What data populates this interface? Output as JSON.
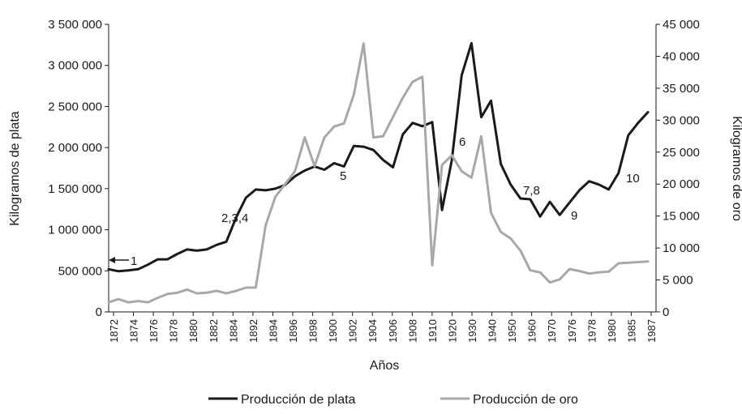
{
  "chart_data": {
    "type": "line",
    "xlabel": "Años",
    "ylabel_left": "Kilogramos de plata",
    "ylabel_right": "Kilogramos de oro",
    "ylim_left": [
      0,
      3500000
    ],
    "ylim_right": [
      0,
      45000
    ],
    "y_ticks_left": [
      "0",
      "500 000",
      "1 000 000",
      "1 500 000",
      "2 000 000",
      "2 500 000",
      "3 000 000",
      "3 500 000"
    ],
    "y_ticks_right": [
      "0",
      "5 000",
      "10 000",
      "15 000",
      "20 000",
      "25 000",
      "30 000",
      "35 000",
      "40 000",
      "45 000"
    ],
    "x_ticks": [
      "1872",
      "1874",
      "1876",
      "1878",
      "1880",
      "1882",
      "1884",
      "1892",
      "1894",
      "1896",
      "1898",
      "1900",
      "1902",
      "1904",
      "1906",
      "1908",
      "1910",
      "1920",
      "1930",
      "1940",
      "1950",
      "1960",
      "1970",
      "1976",
      "1978",
      "1980",
      "1985",
      "1987"
    ],
    "grid": false,
    "legend_position": "bottom",
    "series": [
      {
        "name": "Producción de plata",
        "axis": "left",
        "color": "#1a1a1a",
        "values": [
          520000,
          495000,
          505000,
          520000,
          575000,
          640000,
          640000,
          705000,
          760000,
          745000,
          760000,
          815000,
          855000,
          1150000,
          1390000,
          1490000,
          1480000,
          1500000,
          1545000,
          1650000,
          1720000,
          1770000,
          1730000,
          1810000,
          1770000,
          2020000,
          2010000,
          1970000,
          1850000,
          1760000,
          2160000,
          2300000,
          2260000,
          2310000,
          1240000,
          1850000,
          2880000,
          3270000,
          2370000,
          2570000,
          1800000,
          1550000,
          1380000,
          1370000,
          1160000,
          1340000,
          1180000,
          1330000,
          1480000,
          1590000,
          1550000,
          1490000,
          1690000,
          2150000,
          2300000,
          2430000
        ]
      },
      {
        "name": "Producción de oro",
        "axis": "right",
        "color": "#a8a8a8",
        "values": [
          1500,
          2000,
          1500,
          1700,
          1500,
          2200,
          2800,
          3000,
          3500,
          2900,
          3000,
          3300,
          2900,
          3300,
          3800,
          3800,
          13500,
          18000,
          20000,
          22000,
          27300,
          22800,
          27300,
          29000,
          29500,
          34000,
          42000,
          27300,
          27500,
          30500,
          33500,
          36000,
          36800,
          7300,
          23000,
          24500,
          22000,
          21000,
          27500,
          15500,
          12500,
          11500,
          9600,
          6500,
          6200,
          4600,
          5100,
          6700,
          6400,
          6000,
          6200,
          6300,
          7600,
          7700,
          7800,
          7900
        ]
      }
    ],
    "annotations": [
      "1",
      "2,3,4",
      "5",
      "6",
      "7,8",
      "9",
      "10"
    ]
  }
}
